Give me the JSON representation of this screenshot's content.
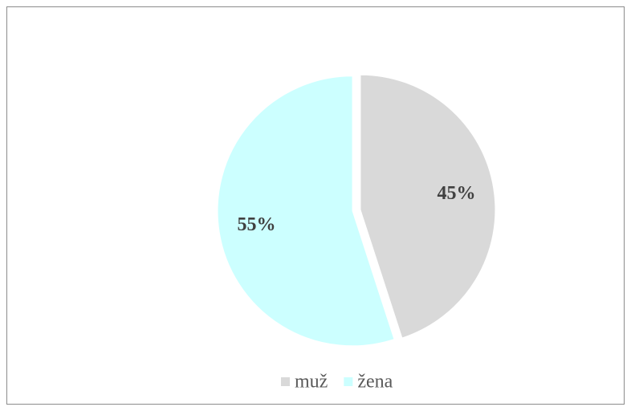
{
  "chart_data": {
    "type": "pie",
    "categories": [
      "muž",
      "žena"
    ],
    "values": [
      45,
      55
    ],
    "value_labels": [
      "45%",
      "55%"
    ],
    "colors": [
      "#d9d9d9",
      "#ccffff"
    ],
    "legend": "bottom"
  }
}
